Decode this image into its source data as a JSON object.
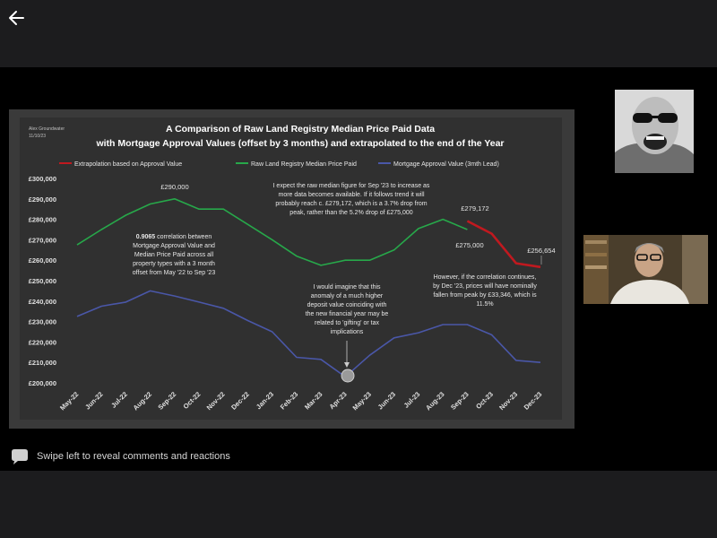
{
  "nav": {
    "back_icon": "arrow-left-icon"
  },
  "chart_header": {
    "author": "Alex Groundwater",
    "date": "11/10/23",
    "title_line1": "A Comparison of Raw Land Registry Median Price Paid Data",
    "title_line2": "with Mortgage Approval Values (offset by 3 months) and extrapolated to the end of the Year"
  },
  "chart_data": {
    "type": "line",
    "categories": [
      "May-22",
      "Jun-22",
      "Jul-22",
      "Aug-22",
      "Sep-22",
      "Oct-22",
      "Nov-22",
      "Dec-22",
      "Jan-23",
      "Feb-23",
      "Mar-23",
      "Apr-23",
      "May-23",
      "Jun-23",
      "Jul-23",
      "Aug-23",
      "Sep-23",
      "Oct-23",
      "Nov-23",
      "Dec-23"
    ],
    "ylim": [
      200000,
      300000
    ],
    "yticks": [
      "£200,000",
      "£210,000",
      "£220,000",
      "£230,000",
      "£240,000",
      "£250,000",
      "£260,000",
      "£270,000",
      "£280,000",
      "£290,000",
      "£300,000"
    ],
    "series": [
      {
        "name": "Extrapolation based on Approval Value",
        "color": "#c0191f",
        "values": [
          null,
          null,
          null,
          null,
          null,
          null,
          null,
          null,
          null,
          null,
          null,
          null,
          null,
          null,
          null,
          null,
          279172,
          273000,
          258500,
          256654
        ]
      },
      {
        "name": "Raw Land Registry Median Price Paid",
        "color": "#27a84a",
        "values": [
          267500,
          275000,
          282000,
          287500,
          290000,
          285000,
          285000,
          277500,
          270000,
          262000,
          257500,
          260000,
          260000,
          265000,
          275500,
          280000,
          275000,
          null,
          null,
          null
        ]
      },
      {
        "name": "Mortgage Approval Value (3mth Lead)",
        "color": "#4a57a8",
        "values": [
          232500,
          237500,
          239500,
          245000,
          242500,
          239500,
          236500,
          230500,
          225000,
          212500,
          211500,
          203000,
          213500,
          222000,
          224500,
          228500,
          228500,
          223500,
          211000,
          210000
        ]
      }
    ],
    "data_labels": {
      "peak": "£290,000",
      "sep_raw": "£275,000",
      "sep_extrap": "£279,172",
      "dec_extrap": "£256,654"
    },
    "annotations": {
      "correlation_bold": "0.9065",
      "correlation_lines": [
        " correlation between",
        "Mortgage Approval Value and",
        "Median Price Paid across all",
        "property types with a 3 month",
        "offset from May  '22 to Sep '23"
      ],
      "expect_lines": [
        "I expect the raw median figure for Sep '23 to increase as",
        "more data becomes available. If it follows trend it will",
        "probably reach c. £279,172, which is a 3.7% drop from",
        "peak, rather than the 5.2% drop of £275,000"
      ],
      "anomaly_lines": [
        "I would imagine that this",
        "anomaly of a much higher",
        "deposit value coinciding with",
        "the new financial year may be",
        "related to 'gifting' or tax",
        "implications"
      ],
      "however_lines": [
        "However, if the correlation  continues,",
        "by Dec '23, prices will have nominally",
        "fallen from peak by £33,346, which is",
        "11.5%"
      ]
    }
  },
  "comments": {
    "icon": "comment-bubble-icon",
    "text": "Swipe left to reveal comments and reactions"
  }
}
